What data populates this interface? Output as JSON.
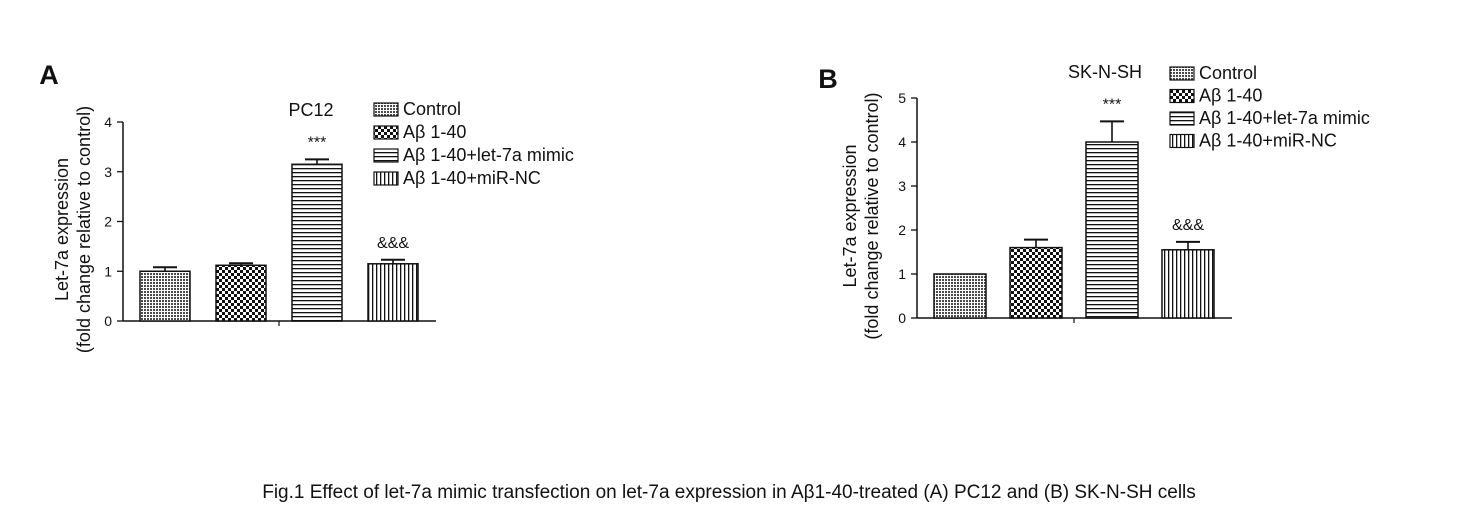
{
  "caption": "Fig.1 Effect of let-7a mimic transfection on let-7a expression in Aβ1-40-treated (A) PC12 and (B) SK-N-SH cells",
  "chart_data": [
    {
      "panel": "A",
      "type": "bar",
      "title": "PC12",
      "ylabel": [
        "Let-7a expression",
        "(fold change relative to control)"
      ],
      "xlabel": "",
      "ylim": [
        0,
        4
      ],
      "yticks": [
        0,
        1,
        2,
        3,
        4
      ],
      "grid": false,
      "legend_position": "top-right",
      "categories": [
        "Control",
        "Aβ 1-40",
        "Aβ 1-40+let-7a mimic",
        "Aβ 1-40+miR-NC"
      ],
      "values": [
        1.0,
        1.12,
        3.15,
        1.15
      ],
      "errors": [
        0.08,
        0.04,
        0.1,
        0.08
      ],
      "annotations": [
        "",
        "",
        "***",
        "&&&"
      ],
      "patterns": [
        "dense-crosshatch",
        "checker",
        "horizontal",
        "vertical"
      ]
    },
    {
      "panel": "B",
      "type": "bar",
      "title": "SK-N-SH",
      "ylabel": [
        "Let-7a expression",
        "(fold change relative to control)"
      ],
      "xlabel": "",
      "ylim": [
        0,
        5
      ],
      "yticks": [
        0,
        1,
        2,
        3,
        4,
        5
      ],
      "grid": false,
      "legend_position": "top-right",
      "categories": [
        "Control",
        "Aβ 1-40",
        "Aβ 1-40+let-7a mimic",
        "Aβ 1-40+miR-NC"
      ],
      "values": [
        1.0,
        1.6,
        4.0,
        1.55
      ],
      "errors": [
        0.0,
        0.18,
        0.47,
        0.18
      ],
      "annotations": [
        "",
        "",
        "***",
        "&&&"
      ],
      "patterns": [
        "dense-crosshatch",
        "checker",
        "horizontal",
        "vertical"
      ]
    }
  ]
}
